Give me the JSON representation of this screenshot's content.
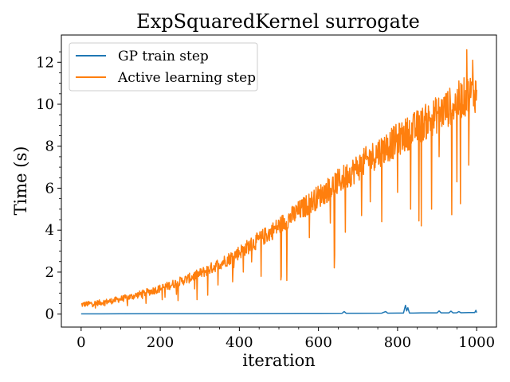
{
  "chart_data": {
    "type": "line",
    "title": "ExpSquaredKernel surrogate",
    "xlabel": "iteration",
    "ylabel": "Time (s)",
    "xlim": [
      -50,
      1050
    ],
    "ylim": [
      -0.62,
      13.3
    ],
    "x_ticks": [
      0,
      200,
      400,
      600,
      800,
      1000
    ],
    "y_ticks": [
      0,
      2,
      4,
      6,
      8,
      10,
      12
    ],
    "x_tick_labels": [
      "0",
      "200",
      "400",
      "600",
      "800",
      "1000"
    ],
    "y_tick_labels": [
      "0",
      "2",
      "4",
      "6",
      "8",
      "10",
      "12"
    ],
    "legend_position": "top-left",
    "grid": false,
    "series": [
      {
        "name": "GP train step",
        "color": "#1f77b4",
        "x": [
          0,
          100,
          200,
          300,
          400,
          500,
          600,
          660,
          665,
          670,
          700,
          760,
          770,
          775,
          800,
          815,
          820,
          823,
          826,
          830,
          840,
          860,
          880,
          900,
          905,
          910,
          930,
          935,
          940,
          950,
          955,
          960,
          980,
          995,
          998,
          1000
        ],
        "values": [
          0.01,
          0.015,
          0.02,
          0.02,
          0.025,
          0.03,
          0.035,
          0.04,
          0.12,
          0.04,
          0.04,
          0.045,
          0.12,
          0.045,
          0.05,
          0.05,
          0.42,
          0.15,
          0.3,
          0.05,
          0.05,
          0.06,
          0.06,
          0.06,
          0.15,
          0.06,
          0.06,
          0.14,
          0.06,
          0.065,
          0.12,
          0.065,
          0.07,
          0.07,
          0.18,
          0.07
        ]
      },
      {
        "name": "Active learning step",
        "color": "#ff7f0e",
        "x": [
          0,
          25,
          50,
          75,
          100,
          125,
          150,
          175,
          200,
          225,
          250,
          275,
          300,
          325,
          350,
          375,
          400,
          425,
          450,
          475,
          500,
          525,
          550,
          575,
          600,
          625,
          650,
          675,
          700,
          725,
          750,
          775,
          800,
          825,
          850,
          875,
          900,
          925,
          950,
          975,
          1000
        ],
        "values": [
          0.45,
          0.5,
          0.55,
          0.62,
          0.72,
          0.82,
          0.95,
          1.08,
          1.22,
          1.38,
          1.55,
          1.72,
          1.92,
          2.15,
          2.4,
          2.65,
          2.95,
          3.25,
          3.55,
          3.85,
          4.2,
          4.55,
          4.9,
          5.25,
          5.6,
          5.95,
          6.3,
          6.65,
          7.0,
          7.35,
          7.7,
          8.0,
          8.3,
          8.6,
          8.9,
          9.2,
          9.5,
          9.8,
          10.1,
          10.4,
          10.6
        ],
        "dips": [
          [
            212,
            0.8
          ],
          [
            320,
            0.9
          ],
          [
            410,
            2.0
          ],
          [
            455,
            1.8
          ],
          [
            520,
            1.6
          ],
          [
            640,
            2.2
          ],
          [
            668,
            3.9
          ],
          [
            760,
            4.4
          ],
          [
            800,
            5.8
          ],
          [
            860,
            4.2
          ],
          [
            905,
            7.5
          ],
          [
            950,
            6.3
          ],
          [
            980,
            7.1
          ]
        ],
        "spikes": [
          [
            950,
            11.8
          ],
          [
            975,
            12.6
          ],
          [
            990,
            12.1
          ]
        ]
      }
    ]
  }
}
